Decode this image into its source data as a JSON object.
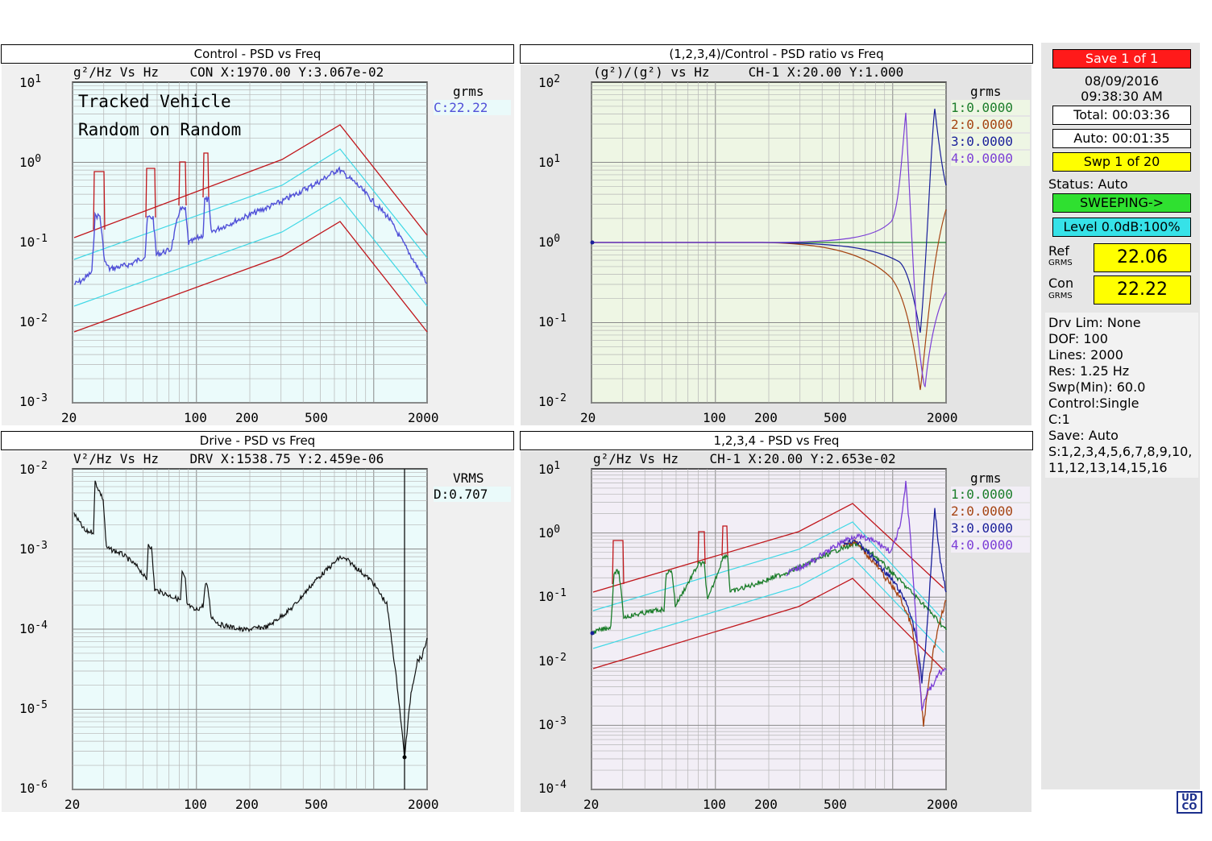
{
  "colors": {
    "limit": "#c0161b",
    "tolerance": "#3fd8e6",
    "control": "#5050d8",
    "ch1": "#1b7d2a",
    "ch2": "#a54412",
    "ch3": "#1a1f9a",
    "ch4": "#7b3ed6",
    "drive": "#111111",
    "ratio_ch4": "#7b3ed6"
  },
  "panels": {
    "control": {
      "title": "Control - PSD vs  Freq",
      "header": "g²/Hz Vs Hz    CON X:1970.00 Y:3.067e-02",
      "overlay_line1": "Tracked Vehicle",
      "overlay_line2": "Random on Random",
      "rms_label": "grms",
      "rms_value": "C:22.22",
      "y_ticks": [
        {
          "base": "10",
          "exp": "1"
        },
        {
          "base": "10",
          "exp": "0"
        },
        {
          "base": "10",
          "exp": "-1"
        },
        {
          "base": "10",
          "exp": "-2"
        },
        {
          "base": "10",
          "exp": "-3"
        }
      ],
      "x_ticks": [
        "20",
        "100",
        "200",
        "500",
        "2000"
      ]
    },
    "ratio": {
      "title": "(1,2,3,4)/Control - PSD ratio  vs  Freq",
      "header": "(g²)/(g²) vs Hz     CH-1 X:20.00 Y:1.000",
      "rms_label": "grms",
      "legend": [
        "1:0.0000",
        "2:0.0000",
        "3:0.0000",
        "4:0.0000"
      ],
      "y_ticks": [
        {
          "base": "10",
          "exp": "2"
        },
        {
          "base": "10",
          "exp": "1"
        },
        {
          "base": "10",
          "exp": "0"
        },
        {
          "base": "10",
          "exp": "-1"
        },
        {
          "base": "10",
          "exp": "-2"
        }
      ],
      "x_ticks": [
        "20",
        "100",
        "200",
        "500",
        "2000"
      ]
    },
    "drive": {
      "title": "Drive - PSD  vs  Freq",
      "header": "V²/Hz Vs Hz    DRV X:1538.75 Y:2.459e-06",
      "rms_label": "VRMS",
      "rms_value": "D:0.707",
      "y_ticks": [
        {
          "base": "10",
          "exp": "-2"
        },
        {
          "base": "10",
          "exp": "-3"
        },
        {
          "base": "10",
          "exp": "-4"
        },
        {
          "base": "10",
          "exp": "-5"
        },
        {
          "base": "10",
          "exp": "-6"
        }
      ],
      "x_ticks": [
        "20",
        "100",
        "200",
        "500",
        "2000"
      ]
    },
    "channels": {
      "title": "1,2,3,4 - PSD vs  Freq",
      "header": "g²/Hz Vs Hz    CH-1 X:20.00 Y:2.653e-02",
      "rms_label": "grms",
      "legend": [
        "1:0.0000",
        "2:0.0000",
        "3:0.0000",
        "4:0.0000"
      ],
      "y_ticks": [
        {
          "base": "10",
          "exp": "1"
        },
        {
          "base": "10",
          "exp": "0"
        },
        {
          "base": "10",
          "exp": "-1"
        },
        {
          "base": "10",
          "exp": "-2"
        },
        {
          "base": "10",
          "exp": "-3"
        },
        {
          "base": "10",
          "exp": "-4"
        }
      ],
      "x_ticks": [
        "20",
        "100",
        "200",
        "500",
        "2000"
      ]
    }
  },
  "status": {
    "save_button": "Save   1  of   1",
    "date": "08/09/2016",
    "time": "09:38:30 AM",
    "total": "Total: 00:03:36",
    "auto": "Auto: 00:01:35",
    "sweep": "Swp    1  of   20",
    "status_text": "Status: Auto",
    "sweeping": "SWEEPING->",
    "level": "Level 0.0dB:100%",
    "ref_label": "Ref",
    "ref_unit": "GRMS",
    "ref_value": "22.06",
    "con_label": "Con",
    "con_unit": "GRMS",
    "con_value": "22.22"
  },
  "info": [
    "Drv Lim: None",
    "DOF: 100",
    "Lines: 2000",
    "Res: 1.25 Hz",
    "Swp(Min): 60.0",
    "Control:Single",
    "C:1",
    "Save: Auto",
    "S:1,2,3,4,5,6,7,8,9,10,",
    "11,12,13,14,15,16"
  ],
  "logo_text": [
    "UD",
    "CO"
  ]
}
